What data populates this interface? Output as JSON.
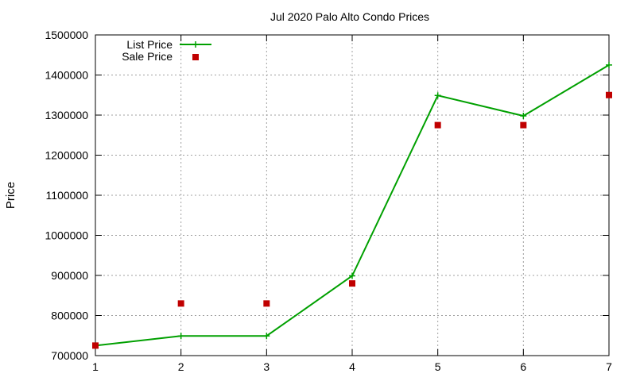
{
  "chart_data": {
    "type": "line",
    "title": "Jul 2020 Palo Alto Condo Prices",
    "xlabel": "",
    "ylabel": "Price",
    "x": [
      1,
      2,
      3,
      4,
      5,
      6,
      7
    ],
    "xlim": [
      1,
      7
    ],
    "ylim": [
      700000,
      1500000
    ],
    "xticks": [
      "1",
      "2",
      "3",
      "4",
      "5",
      "6",
      "7"
    ],
    "yticks": [
      "700000",
      "800000",
      "900000",
      "1000000",
      "1100000",
      "1200000",
      "1300000",
      "1400000",
      "1500000"
    ],
    "grid": true,
    "legend_position": "top-left",
    "series": [
      {
        "name": "List Price",
        "style": "line-plus",
        "color": "#00a000",
        "values": [
          725000,
          749000,
          749000,
          899000,
          1349000,
          1298000,
          1425000
        ]
      },
      {
        "name": "Sale Price",
        "style": "square-points",
        "color": "#c00000",
        "values": [
          725000,
          830000,
          830000,
          880000,
          1275000,
          1275000,
          1350000
        ]
      }
    ]
  }
}
